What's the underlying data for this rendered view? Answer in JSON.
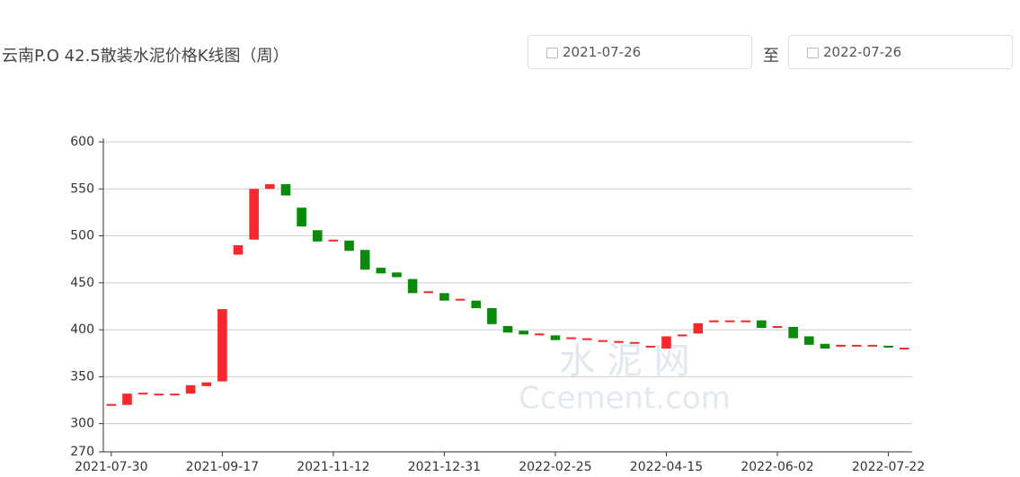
{
  "header": {
    "title": "云南P.O 42.5散装水泥价格K线图（周）",
    "start_date": "2021-07-26",
    "separator": "至",
    "end_date": "2022-07-26"
  },
  "watermark": [
    "水 泥 网",
    "Ccement.com"
  ],
  "chart_data": {
    "type": "candlestick",
    "categories": [
      "2021-07-30",
      null,
      null,
      null,
      null,
      null,
      null,
      "2021-09-17",
      null,
      null,
      null,
      null,
      null,
      null,
      "2021-11-12",
      null,
      null,
      null,
      null,
      null,
      null,
      "2021-12-31",
      null,
      null,
      null,
      null,
      null,
      null,
      "2022-02-25",
      null,
      null,
      null,
      null,
      null,
      null,
      "2022-04-15",
      null,
      null,
      null,
      null,
      null,
      null,
      "2022-06-02",
      null,
      null,
      null,
      null,
      null,
      null,
      "2022-07-22",
      null
    ],
    "open": [
      320,
      320,
      332,
      331,
      331,
      332,
      340,
      345,
      480,
      496,
      550,
      555,
      530,
      506,
      494,
      495,
      485,
      466,
      461,
      454,
      440,
      439,
      432,
      431,
      423,
      404,
      399,
      395,
      394,
      391,
      390,
      388,
      387,
      386,
      382,
      380,
      393,
      396,
      408,
      409,
      409,
      410,
      403,
      403,
      393,
      385,
      382,
      383,
      383,
      383,
      380
    ],
    "close": [
      320,
      332,
      332,
      331,
      331,
      341,
      344,
      422,
      490,
      550,
      555,
      543,
      510,
      494,
      495,
      484,
      464,
      460,
      456,
      439,
      440,
      431,
      432,
      423,
      406,
      397,
      395,
      395,
      389,
      391,
      390,
      388,
      387,
      386,
      382,
      393,
      394,
      407,
      410,
      409,
      409,
      402,
      403,
      391,
      384,
      380,
      384,
      383,
      383,
      381,
      380
    ],
    "up_color": "#f5282d",
    "down_color": "#0a8a0a",
    "ylim": [
      270,
      600
    ],
    "yticks": [
      270,
      300,
      350,
      400,
      450,
      500,
      550,
      600
    ],
    "grid": true
  }
}
